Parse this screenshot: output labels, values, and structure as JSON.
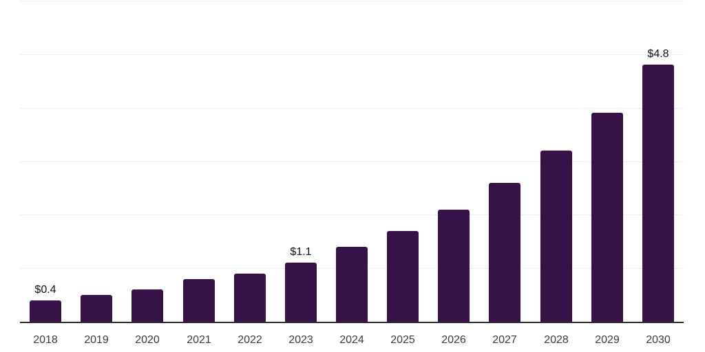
{
  "chart_data": {
    "type": "bar",
    "title": "",
    "xlabel": "",
    "ylabel": "",
    "categories": [
      "2018",
      "2019",
      "2020",
      "2021",
      "2022",
      "2023",
      "2024",
      "2025",
      "2026",
      "2027",
      "2028",
      "2029",
      "2030"
    ],
    "values": [
      0.4,
      0.5,
      0.6,
      0.8,
      0.9,
      1.1,
      1.4,
      1.7,
      2.1,
      2.6,
      3.2,
      3.9,
      4.8
    ],
    "bar_labels": [
      "$0.4",
      "",
      "",
      "",
      "",
      "$1.1",
      "",
      "",
      "",
      "",
      "",
      "",
      "$4.8"
    ],
    "ylim": [
      0,
      6
    ],
    "gridline_interval": 1,
    "grid": "horizontal",
    "legend": "none",
    "y_tick_labels_visible": false,
    "colors": {
      "bar": "#371249",
      "axis_line": "#2b2b2b",
      "gridline": "#ededed",
      "value_label": "#111111",
      "tick_label": "#3a3a3a",
      "background": "#ffffff"
    }
  }
}
